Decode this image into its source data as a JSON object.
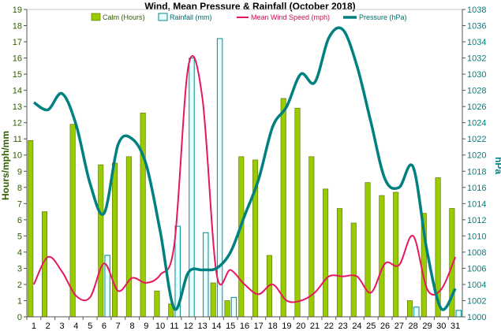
{
  "chart_data": {
    "type": "bar",
    "title": "Wind, Mean Pressure & Rainfall (October 2018)",
    "ylabel": "Hours/mph/mm",
    "y2label": "hPa",
    "ylim": [
      0,
      19
    ],
    "y2lim": [
      1000,
      1038
    ],
    "yticks": [
      0,
      1,
      2,
      3,
      4,
      5,
      6,
      7,
      8,
      9,
      10,
      11,
      12,
      13,
      14,
      15,
      16,
      17,
      18,
      19
    ],
    "y2ticks": [
      1000,
      1002,
      1004,
      1006,
      1008,
      1010,
      1012,
      1014,
      1016,
      1018,
      1020,
      1022,
      1024,
      1026,
      1028,
      1030,
      1032,
      1034,
      1036,
      1038
    ],
    "categories": [
      "1",
      "2",
      "3",
      "4",
      "5",
      "6",
      "7",
      "8",
      "9",
      "10",
      "11",
      "12",
      "13",
      "14",
      "15",
      "16",
      "17",
      "18",
      "19",
      "20",
      "21",
      "22",
      "23",
      "24",
      "25",
      "26",
      "27",
      "28",
      "29",
      "30",
      "31"
    ],
    "legend_position": "top",
    "colors": {
      "calm_fill": "#99cc00",
      "calm_stroke": "#556b00",
      "rain_fill": "#e6ffff",
      "rain_stroke": "#008b8b",
      "wind": "#e6175e",
      "pressure": "#008080",
      "left_axis": "#2e5f00",
      "right_axis": "#008080"
    },
    "series": [
      {
        "name": "Calm (Hours)",
        "kind": "bar",
        "values": [
          10.9,
          6.5,
          0,
          11.9,
          0,
          9.4,
          9.5,
          9.9,
          12.6,
          1.6,
          0.8,
          0,
          0,
          2.1,
          1.0,
          9.9,
          9.7,
          3.8,
          13.5,
          12.9,
          9.9,
          7.9,
          6.7,
          5.8,
          8.3,
          7.5,
          7.7,
          1.0,
          6.4,
          8.6,
          6.7
        ]
      },
      {
        "name": "Rainfall (mm)",
        "kind": "bar",
        "values": [
          0,
          0,
          0,
          0,
          0,
          3.8,
          0,
          0,
          0,
          0,
          5.6,
          16.0,
          5.2,
          17.2,
          1.2,
          0,
          0,
          0,
          0,
          0,
          0,
          0,
          0,
          0,
          0,
          0,
          0,
          0.6,
          0,
          0,
          0.4
        ]
      },
      {
        "name": "Mean Wind Speed (mph)",
        "kind": "line",
        "values": [
          2.0,
          3.7,
          2.8,
          1.3,
          1.2,
          3.3,
          1.6,
          2.4,
          2.1,
          2.6,
          4.5,
          15.5,
          13.5,
          2.7,
          2.9,
          2.0,
          1.4,
          2.0,
          1.0,
          1.0,
          1.5,
          2.5,
          2.5,
          2.5,
          1.5,
          3.3,
          3.2,
          5.0,
          1.7,
          1.7,
          3.7
        ]
      },
      {
        "name": "Pressure (hPa)",
        "kind": "line",
        "axis": "right",
        "values": [
          1026.5,
          1025.6,
          1027.6,
          1023.8,
          1016.5,
          1012.8,
          1021.3,
          1022.0,
          1018.8,
          1010.5,
          1001.0,
          1005.5,
          1005.8,
          1006.0,
          1008.0,
          1012.5,
          1017.0,
          1023.5,
          1026.0,
          1030.0,
          1029.0,
          1034.5,
          1035.5,
          1031.0,
          1024.0,
          1017.0,
          1016.0,
          1018.5,
          1008.0,
          1001.0,
          1003.5
        ]
      }
    ]
  }
}
